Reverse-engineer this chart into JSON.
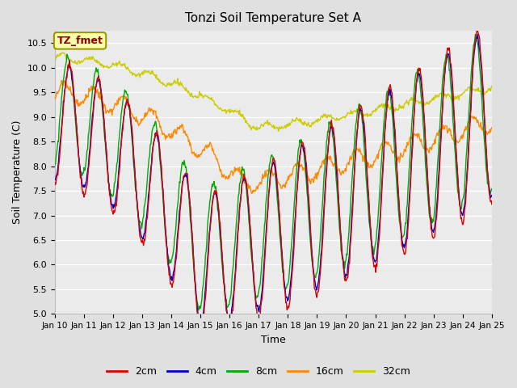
{
  "title": "Tonzi Soil Temperature Set A",
  "xlabel": "Time",
  "ylabel": "Soil Temperature (C)",
  "ylim": [
    5.0,
    10.75
  ],
  "bg_color": "#e0e0e0",
  "plot_bg_color": "#ebebeb",
  "annotation_text": "TZ_fmet",
  "annotation_bg": "#ffffaa",
  "annotation_fg": "#880000",
  "xtick_labels": [
    "Jan 10",
    "Jan 11",
    "Jan 12",
    "Jan 13",
    "Jan 14",
    "Jan 15",
    "Jan 16",
    "Jan 17",
    "Jan 18",
    "Jan 19",
    "Jan 20",
    "Jan 21",
    "Jan 22",
    "Jan 23",
    "Jan 24",
    "Jan 25"
  ],
  "ytick_values": [
    5.0,
    5.5,
    6.0,
    6.5,
    7.0,
    7.5,
    8.0,
    8.5,
    9.0,
    9.5,
    10.0,
    10.5
  ],
  "colors": {
    "2cm": "#dd0000",
    "4cm": "#0000cc",
    "8cm": "#00aa00",
    "16cm": "#ff8800",
    "32cm": "#cccc00"
  }
}
